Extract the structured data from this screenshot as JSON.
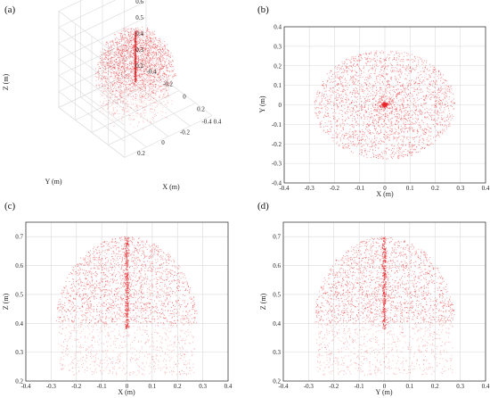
{
  "figure": {
    "panels": [
      {
        "label": "(a)"
      },
      {
        "label": "(b)"
      },
      {
        "label": "(c)"
      },
      {
        "label": "(d)"
      }
    ]
  },
  "chart_data": [
    {
      "type": "scatter",
      "view": "3d",
      "panel": "(a)",
      "xlabel": "X (m)",
      "ylabel": "Y (m)",
      "zlabel": "Z (m)",
      "xlim": [
        -0.4,
        0.4
      ],
      "ylim": [
        -0.4,
        0.4
      ],
      "zlim": [
        0.2,
        0.8
      ],
      "x_ticks": [
        "-0.4",
        "-0.2",
        "0",
        "0.2",
        "0.4"
      ],
      "y_ticks": [
        "-0.4",
        "-0.2",
        "0",
        "0.2"
      ],
      "z_ticks": [
        "0.2",
        "0.3",
        "0.4",
        "0.5",
        "0.6",
        "0.7",
        "0.8"
      ],
      "grid": true,
      "marker_color": "#e8262a",
      "description": "dense point cloud: half-sphere dome of radius ~0.3 m centred on the Z axis, spanning Z 0.2-0.7 m"
    },
    {
      "type": "scatter",
      "panel": "(b)",
      "xlabel": "X (m)",
      "ylabel": "Y (m)",
      "xlim": [
        -0.4,
        0.4
      ],
      "ylim": [
        -0.4,
        0.4
      ],
      "x_ticks": [
        "-0.4",
        "-0.3",
        "-0.2",
        "-0.1",
        "0",
        "0.1",
        "0.2",
        "0.3",
        "0.4"
      ],
      "y_ticks": [
        "-0.4",
        "-0.3",
        "-0.2",
        "-0.1",
        "0",
        "0.1",
        "0.2",
        "0.3",
        "0.4"
      ],
      "grid": true,
      "marker_color": "#e8262a",
      "description": "top view: uniform disk of radius ~0.28 m with a dense cluster at the origin"
    },
    {
      "type": "scatter",
      "panel": "(c)",
      "xlabel": "X (m)",
      "ylabel": "Z (m)",
      "xlim": [
        -0.4,
        0.4
      ],
      "ylim": [
        0.2,
        0.75
      ],
      "x_ticks": [
        "-0.4",
        "-0.3",
        "-0.2",
        "-0.1",
        "0",
        "0.1",
        "0.2",
        "0.3",
        "0.4"
      ],
      "y_ticks": [
        "0.2",
        "0.3",
        "0.4",
        "0.5",
        "0.6",
        "0.7"
      ],
      "grid": true,
      "marker_color": "#e8262a",
      "description": "side view: dome profile, sparse cylinder 0.22-0.40 m, dense dome 0.40-0.70 m, dense vertical line at X=0"
    },
    {
      "type": "scatter",
      "panel": "(d)",
      "xlabel": "Y (m)",
      "ylabel": "Z (m)",
      "xlim": [
        -0.4,
        0.4
      ],
      "ylim": [
        0.2,
        0.75
      ],
      "x_ticks": [
        "-0.4",
        "-0.3",
        "-0.2",
        "-0.1",
        "0",
        "0.1",
        "0.2",
        "0.3",
        "0.4"
      ],
      "y_ticks": [
        "0.2",
        "0.3",
        "0.4",
        "0.5",
        "0.6",
        "0.7"
      ],
      "grid": true,
      "marker_color": "#e8262a",
      "description": "side view: dome profile, sparse cylinder 0.22-0.40 m, dense dome 0.40-0.70 m, dense vertical line at Y=0"
    }
  ]
}
